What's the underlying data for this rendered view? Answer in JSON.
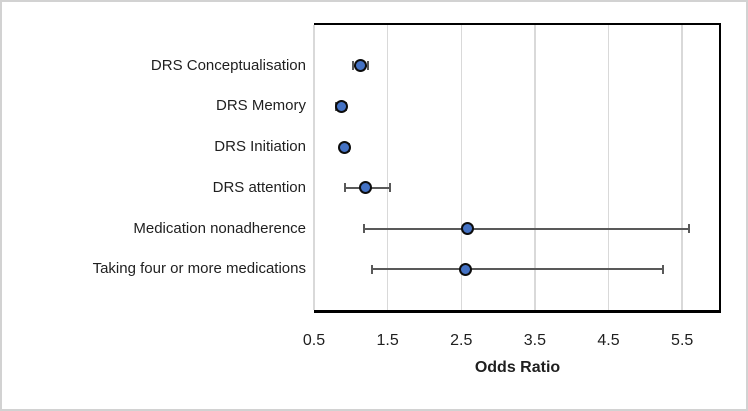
{
  "chart_data": {
    "type": "scatter",
    "subtype": "forest-plot",
    "title": "",
    "xlabel": "Odds Ratio",
    "ylabel": "",
    "xlim": [
      0.5,
      6.0
    ],
    "x_ticks": [
      0.5,
      1.5,
      2.5,
      3.5,
      4.5,
      5.5
    ],
    "x_tick_labels": [
      "0.5",
      "1.5",
      "2.5",
      "3.5",
      "4.5",
      "5.5"
    ],
    "grid": "vertical gridlines on",
    "legend": "none",
    "categories": [
      "DRS Conceptualisation",
      "DRS Memory",
      "DRS Initiation",
      "DRS attention",
      "Medication nonadherence",
      "Taking four or more medications"
    ],
    "points": [
      {
        "category": "DRS Conceptualisation",
        "or": 1.13,
        "ci_low": 1.03,
        "ci_high": 1.24
      },
      {
        "category": "DRS Memory",
        "or": 0.87,
        "ci_low": 0.8,
        "ci_high": 0.93
      },
      {
        "category": "DRS Initiation",
        "or": 0.92,
        "ci_low": 0.86,
        "ci_high": 0.98
      },
      {
        "category": "DRS attention",
        "or": 1.2,
        "ci_low": 0.92,
        "ci_high": 1.53
      },
      {
        "category": "Medication nonadherence",
        "or": 2.59,
        "ci_low": 1.18,
        "ci_high": 5.59
      },
      {
        "category": "Taking four or more medications",
        "or": 2.56,
        "ci_low": 1.29,
        "ci_high": 5.24
      }
    ]
  },
  "colors": {
    "marker_fill": "#4472C4",
    "marker_border": "#0d0d0d",
    "error_bar": "#595959",
    "gridline": "#D9D9D9",
    "axis_border": "#000000",
    "text": "#1f1f1f",
    "figure_frame": "#D2D2D2",
    "background": "#FFFFFF"
  }
}
